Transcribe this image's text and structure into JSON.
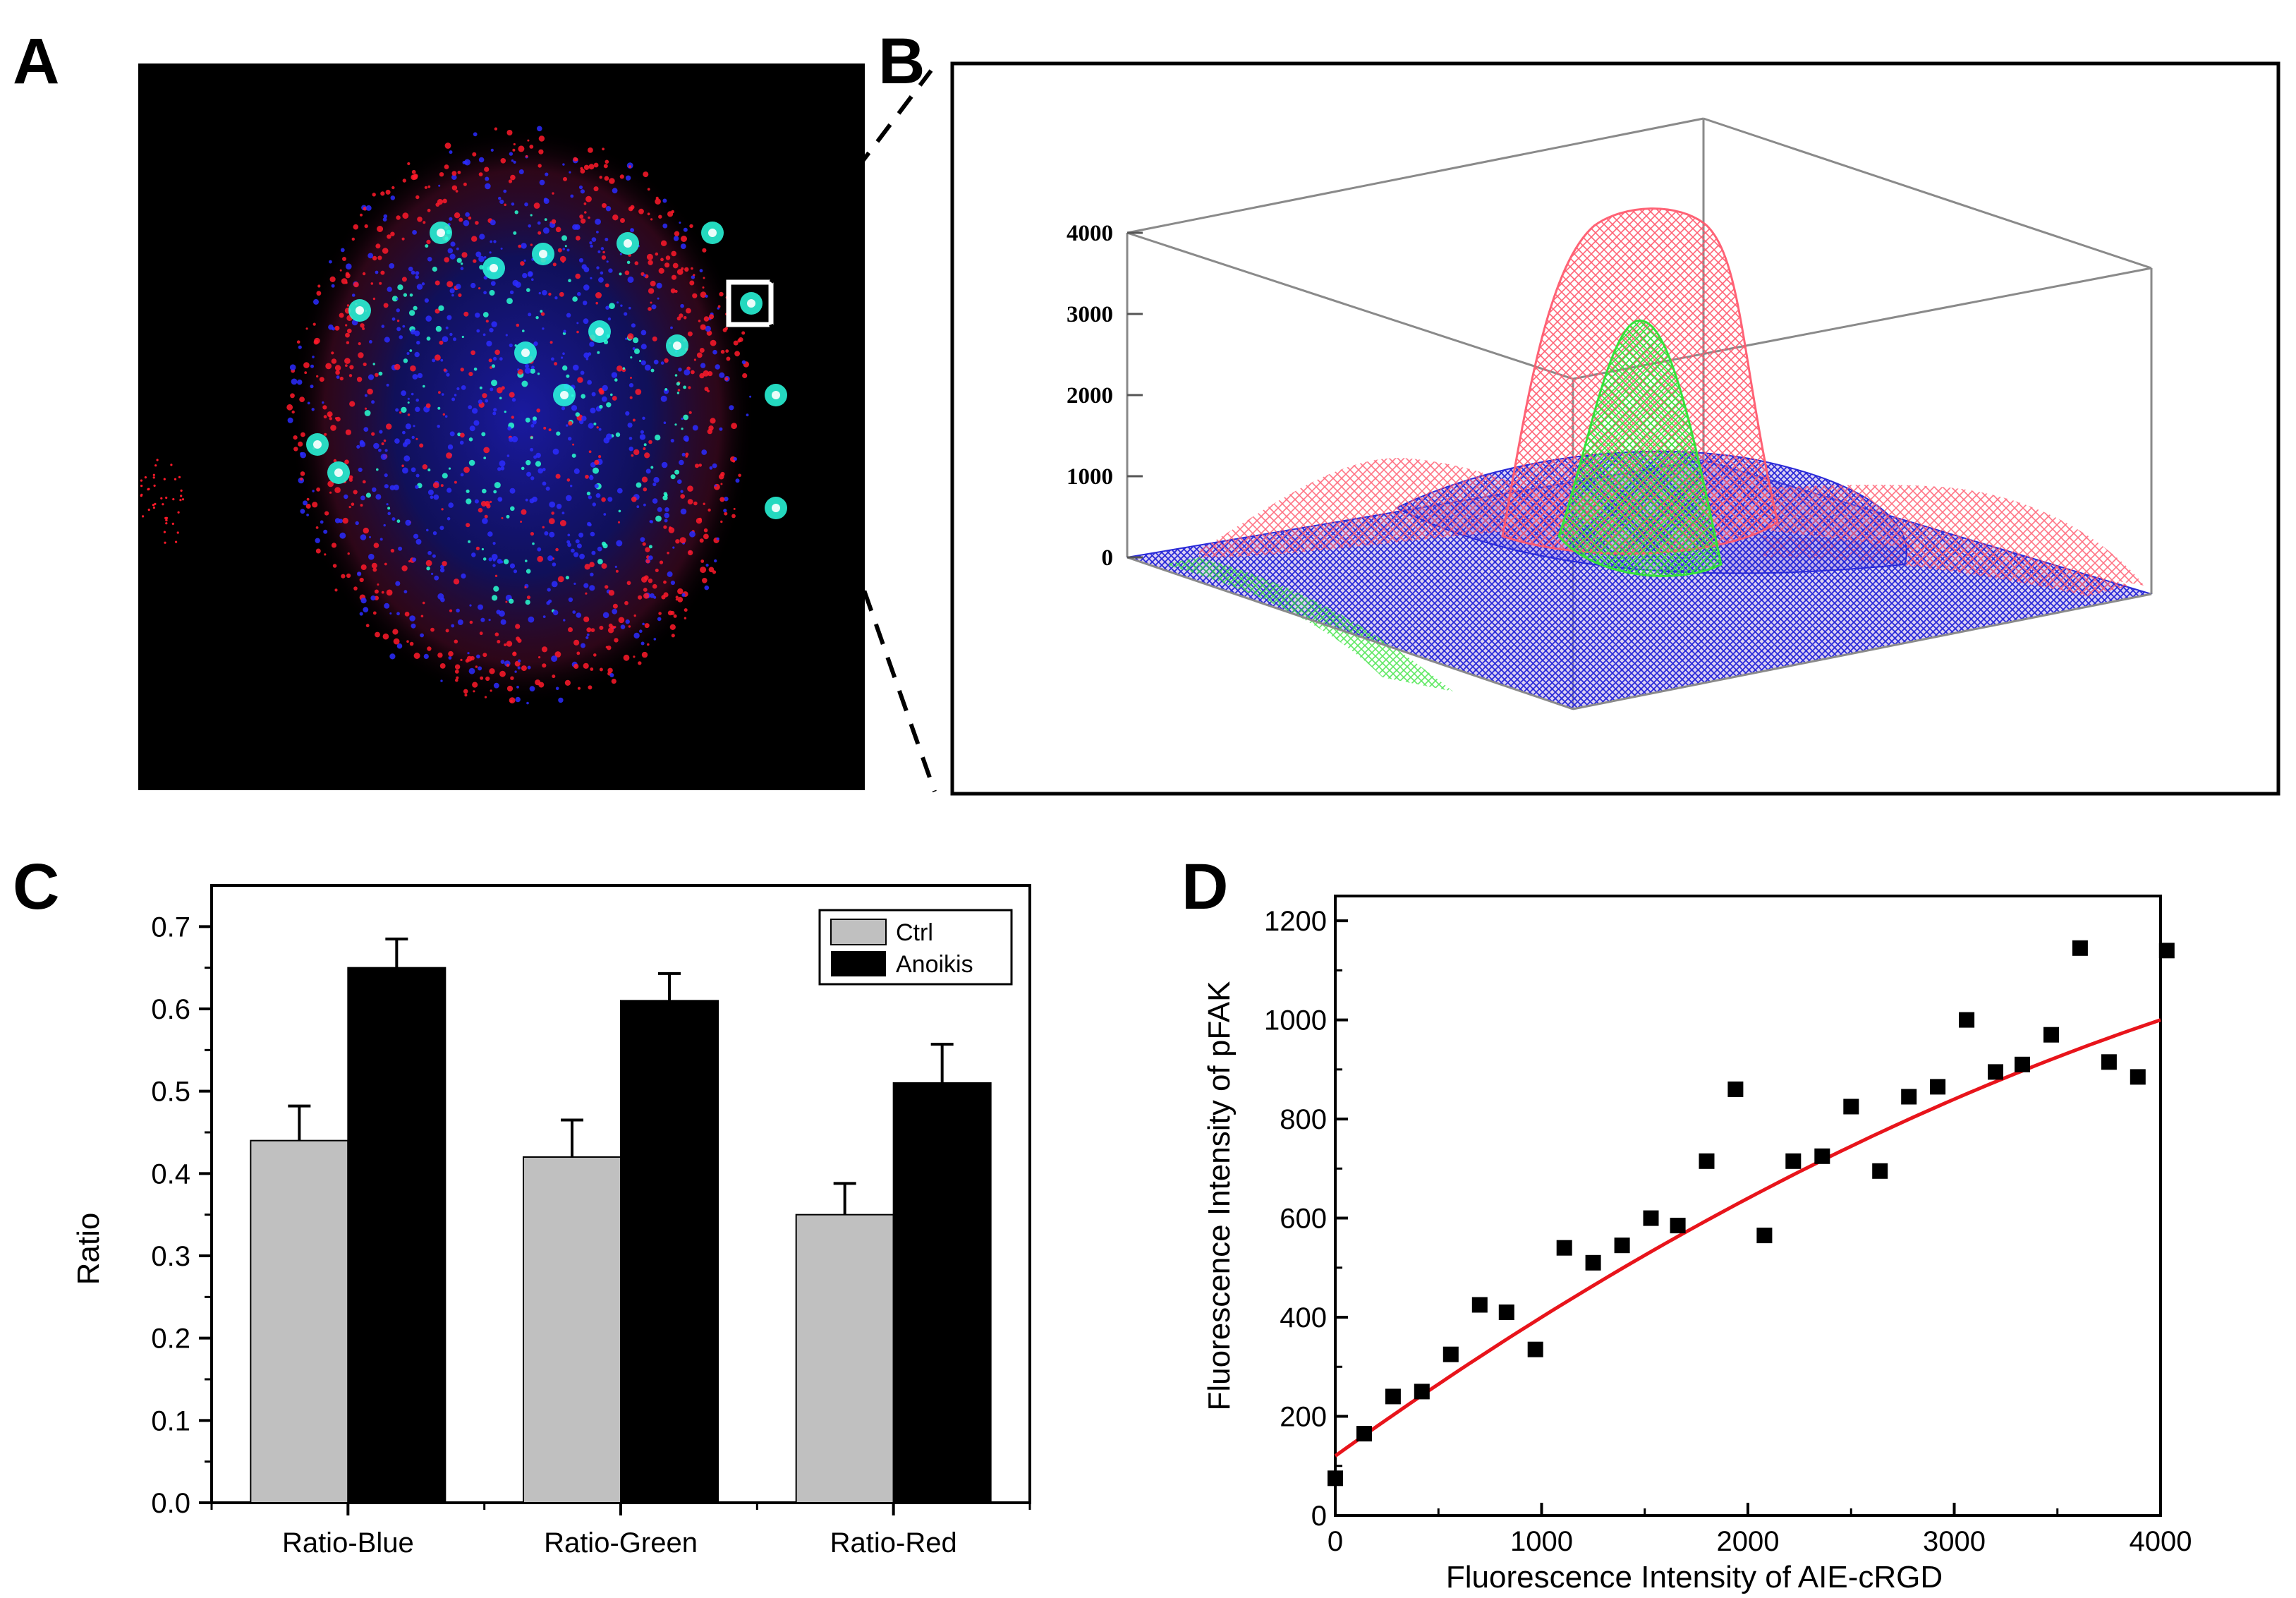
{
  "panels": {
    "a": {
      "label": "A"
    },
    "b": {
      "label": "B"
    },
    "c": {
      "label": "C"
    },
    "d": {
      "label": "D"
    }
  },
  "colors": {
    "ctrl": "#c0c0c0",
    "anoikis": "#000000",
    "fit": "#e8141b",
    "mesh_red": "#ff5a6e",
    "mesh_green": "#35e23a",
    "mesh_blue": "#2a2ad8"
  },
  "chart_data": [
    {
      "id": "B",
      "type": "surface3d",
      "z_ticks": [
        "4000",
        "3000",
        "2000",
        "1000",
        "0"
      ],
      "zlim": [
        0,
        4000
      ],
      "series": [
        {
          "name": "red channel",
          "peak": 4000
        },
        {
          "name": "green channel",
          "peak": 3000
        },
        {
          "name": "blue channel",
          "peak": 1200
        }
      ]
    },
    {
      "id": "C",
      "type": "bar",
      "title": "",
      "xlabel": "",
      "ylabel": "Ratio",
      "ylim": [
        0.0,
        0.75
      ],
      "y_ticks": [
        "0.0",
        "0.1",
        "0.2",
        "0.3",
        "0.4",
        "0.5",
        "0.6",
        "0.7"
      ],
      "categories": [
        "Ratio-Blue",
        "Ratio-Green",
        "Ratio-Red"
      ],
      "series": [
        {
          "name": "Ctrl",
          "values": [
            0.44,
            0.42,
            0.35
          ],
          "errors": [
            0.042,
            0.045,
            0.038
          ]
        },
        {
          "name": "Anoikis",
          "values": [
            0.65,
            0.61,
            0.51
          ],
          "errors": [
            0.035,
            0.033,
            0.047
          ]
        }
      ],
      "legend_position": "top-right"
    },
    {
      "id": "D",
      "type": "scatter",
      "title": "",
      "xlabel": "Fluorescence Intensity of AIE-cRGD",
      "ylabel": "Fluorescence Intensity of pFAK",
      "xlim": [
        0,
        4000
      ],
      "ylim": [
        0,
        1250
      ],
      "x_ticks": [
        "0",
        "1000",
        "2000",
        "3000",
        "4000"
      ],
      "y_ticks": [
        "0",
        "200",
        "400",
        "600",
        "800",
        "1000",
        "1200"
      ],
      "points": {
        "x": [
          0,
          140,
          280,
          420,
          560,
          700,
          830,
          970,
          1110,
          1250,
          1390,
          1530,
          1660,
          1800,
          1940,
          2080,
          2220,
          2360,
          2500,
          2640,
          2780,
          2920,
          3060,
          3200,
          3330,
          3470,
          3610,
          3750,
          3890,
          4030
        ],
        "y": [
          75,
          165,
          240,
          250,
          325,
          425,
          410,
          335,
          540,
          510,
          545,
          600,
          585,
          715,
          860,
          565,
          715,
          725,
          825,
          695,
          845,
          865,
          1000,
          895,
          910,
          970,
          1145,
          915,
          885,
          1140
        ]
      },
      "fit": {
        "type": "quadratic",
        "coefficients": [
          120,
          0.3,
          -2e-05
        ],
        "x_range": [
          0,
          4000
        ]
      }
    }
  ]
}
